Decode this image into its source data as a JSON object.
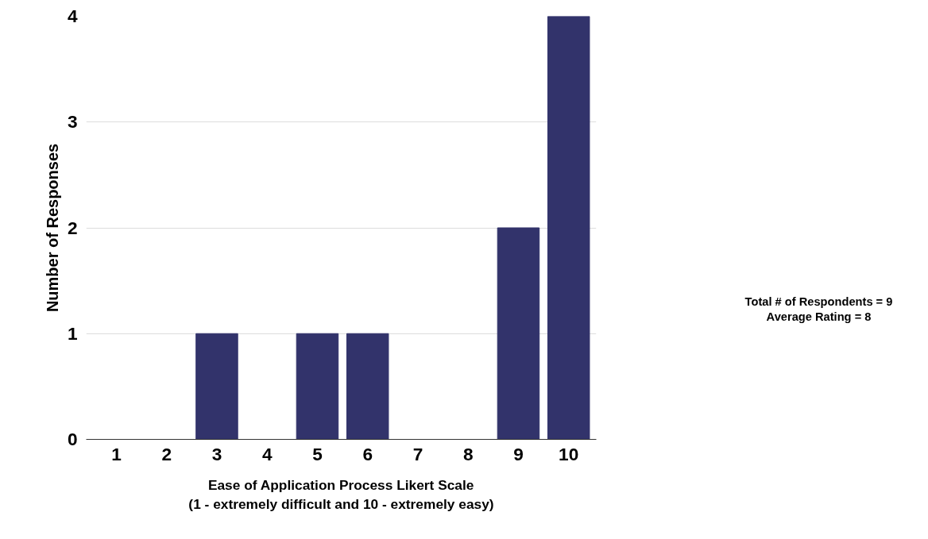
{
  "chart_data": {
    "type": "bar",
    "categories": [
      "1",
      "2",
      "3",
      "4",
      "5",
      "6",
      "7",
      "8",
      "9",
      "10"
    ],
    "values": [
      0,
      0,
      1,
      0,
      1,
      1,
      0,
      0,
      2,
      4
    ],
    "color": "#32336b",
    "xlabel": "Ease of Application Process Likert Scale\n(1 - extremely difficult and 10 - extremely easy)",
    "ylabel": "Number of Responses",
    "ylim": [
      0,
      4
    ],
    "yticks": [
      0,
      1,
      2,
      3,
      4
    ],
    "grid": "y",
    "annotations": [
      "Total # of Respondents = 9",
      "Average Rating = 8"
    ]
  }
}
